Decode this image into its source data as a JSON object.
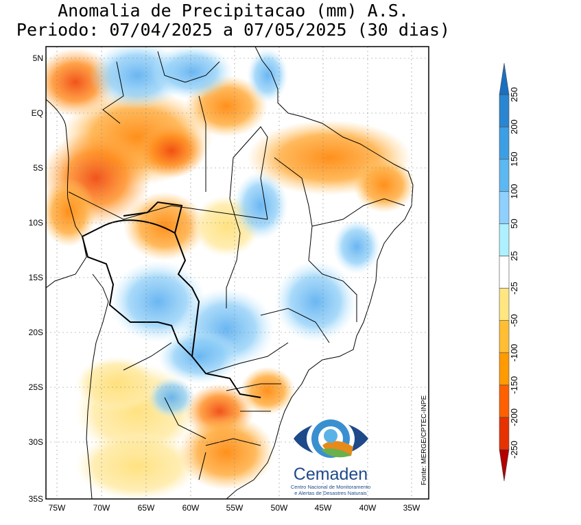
{
  "title": {
    "line1": "Anomalia de Precipitacao (mm) A.S.",
    "line2": "Periodo: 07/04/2025 a 07/05/2025 (30 dias)"
  },
  "axes": {
    "lat_labels": [
      "5N",
      "EQ",
      "5S",
      "10S",
      "15S",
      "20S",
      "25S",
      "30S",
      "35S"
    ],
    "lon_labels": [
      "75W",
      "70W",
      "65W",
      "60W",
      "55W",
      "50W",
      "45W",
      "40W",
      "35W"
    ],
    "lat_range": [
      5.5,
      -35
    ],
    "lon_range": [
      -76,
      -33
    ]
  },
  "source_note": "Fonte: MERGE/CPTEC-INPE",
  "logo": {
    "name": "Cemaden",
    "subtitle_line1": "Centro Nacional de Monitoramento",
    "subtitle_line2": "e Alertas de Desastres Naturais"
  },
  "colorbar": {
    "labels": [
      "-250",
      "-200",
      "-150",
      "-100",
      "-50",
      "-25",
      "25",
      "50",
      "100",
      "150",
      "200",
      "250"
    ],
    "colors": [
      "#b30000",
      "#e63200",
      "#ff6000",
      "#ff9a00",
      "#ffbe33",
      "#ffe680",
      "#ffffff",
      "#aef0ff",
      "#8fd0ff",
      "#5cb8f0",
      "#3d9fe3",
      "#2a86d1",
      "#1a70bf"
    ]
  }
}
